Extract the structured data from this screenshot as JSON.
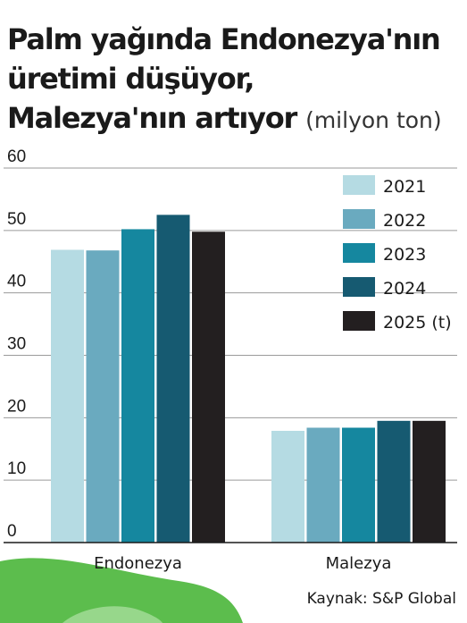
{
  "title": {
    "line1": "Palm yağında Endonezya'nın",
    "line2": "üretimi  düşüyor,",
    "line3": "Malezya'nın artıyor",
    "unit": "(milyon ton)"
  },
  "source": "Kaynak: S&P Global",
  "chart_data": {
    "type": "bar",
    "title": "Palm yağında Endonezya'nın üretimi düşüyor, Malezya'nın artıyor",
    "ylabel": "(milyon ton)",
    "categories": [
      "Endonezya",
      "Malezya"
    ],
    "series": [
      {
        "name": "2021",
        "color": "#b5dbe3",
        "values": [
          46.9,
          17.9
        ]
      },
      {
        "name": "2022",
        "color": "#6aaabf",
        "values": [
          46.8,
          18.4
        ]
      },
      {
        "name": "2023",
        "color": "#15879f",
        "values": [
          50.2,
          18.4
        ]
      },
      {
        "name": "2024",
        "color": "#165a71",
        "values": [
          52.5,
          19.5
        ]
      },
      {
        "name": "2025 (t)",
        "color": "#231f20",
        "values": [
          49.8,
          19.5
        ]
      }
    ],
    "ylim": [
      0,
      60
    ],
    "yticks": [
      0,
      10,
      20,
      30,
      40,
      50,
      60
    ],
    "grid": true,
    "legend": "top-right"
  },
  "colors": {
    "grid": "#9a9a9a",
    "axis": "#1a1a1a",
    "green_blob": "#5cbd4d"
  }
}
